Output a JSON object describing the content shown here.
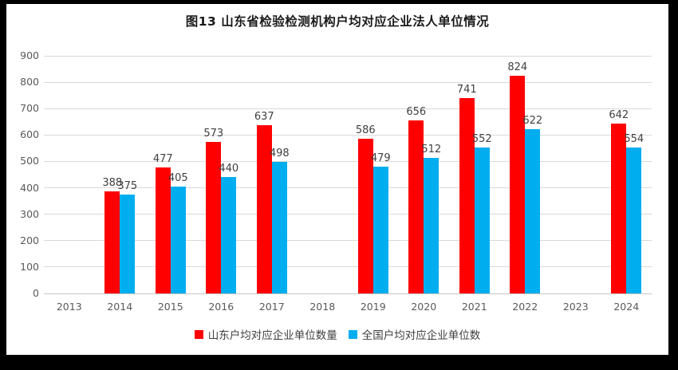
{
  "chart_data": {
    "type": "bar",
    "title": "图13 山东省检验检测机构户均对应企业法人单位情况",
    "categories": [
      "2013",
      "2014",
      "2015",
      "2016",
      "2017",
      "2018",
      "2019",
      "2020",
      "2021",
      "2022",
      "2023",
      "2024"
    ],
    "series": [
      {
        "name": "山东户均对应企业单位数量",
        "color": "#ff0000",
        "values": [
          null,
          388,
          477,
          573,
          637,
          null,
          586,
          656,
          741,
          824,
          null,
          642
        ]
      },
      {
        "name": "全国户均对应企业单位数",
        "color": "#00aeef",
        "values": [
          null,
          375,
          405,
          440,
          498,
          null,
          479,
          512,
          552,
          622,
          null,
          554
        ]
      }
    ],
    "ylim": [
      0,
      900
    ],
    "ytick_step": 100,
    "xlabel": "",
    "ylabel": "",
    "grid": true,
    "legend_position": "bottom"
  },
  "colors": {
    "gridline": "#d9d9d9",
    "baseline": "#c6c6c6",
    "tick_label": "#595959",
    "data_label": "#404040",
    "title": "#1a1a1a",
    "frame": "#000000",
    "canvas": "#ffffff"
  }
}
